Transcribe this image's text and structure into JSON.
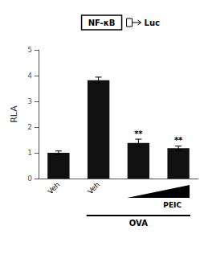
{
  "chart_data": {
    "type": "bar",
    "ylabel": "RLA",
    "categories": [
      "Veh",
      "Veh",
      null,
      null
    ],
    "values": [
      1.0,
      3.82,
      1.38,
      1.18
    ],
    "errors": [
      0.07,
      0.12,
      0.15,
      0.08
    ],
    "significance": [
      null,
      null,
      "**",
      "**"
    ],
    "color": "#111111",
    "ylim": [
      0,
      5
    ],
    "yticks": [
      0,
      1,
      2,
      3,
      4,
      5
    ],
    "grid": false,
    "annotations": [
      "NF-κB",
      "Luc",
      "PEIC",
      "OVA"
    ]
  }
}
